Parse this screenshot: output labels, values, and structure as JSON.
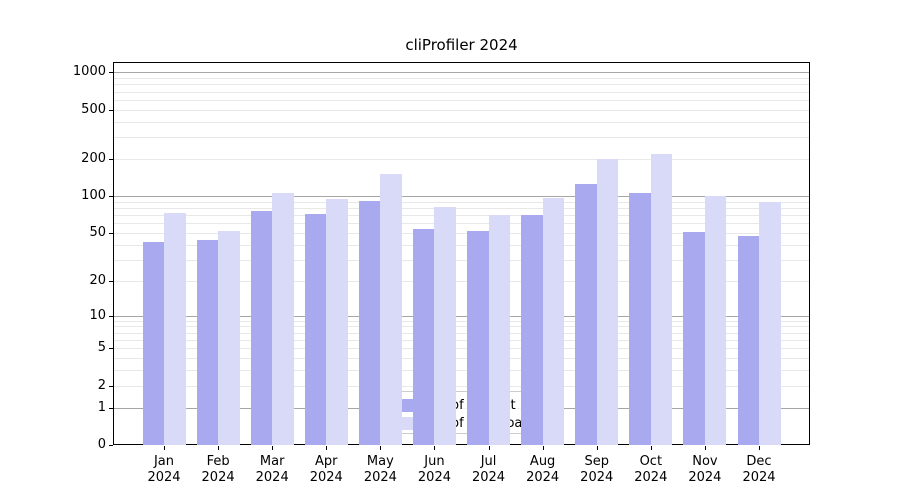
{
  "title": "cliProfiler 2024",
  "chart_data": {
    "type": "bar",
    "title": "cliProfiler 2024",
    "categories": [
      "Jan",
      "Feb",
      "Mar",
      "Apr",
      "May",
      "Jun",
      "Jul",
      "Aug",
      "Sep",
      "Oct",
      "Nov",
      "Dec"
    ],
    "x_tick_year": "2024",
    "series": [
      {
        "name": "Nb of distinct IPs",
        "color": "#a9a9f0",
        "values": [
          42,
          44,
          75,
          72,
          92,
          54,
          52,
          70,
          125,
          105,
          51,
          47
        ]
      },
      {
        "name": "Nb of downloads",
        "color": "#d9d9f8",
        "values": [
          73,
          52,
          105,
          95,
          150,
          82,
          70,
          97,
          200,
          220,
          100,
          90
        ]
      }
    ],
    "yscale": "log1p",
    "ylim": [
      0,
      1212
    ],
    "ytick_labels": [
      "0",
      "1",
      "2",
      "5",
      "10",
      "20",
      "50",
      "100",
      "200",
      "500",
      "1000"
    ],
    "yticks": [
      0,
      1,
      2,
      5,
      10,
      20,
      50,
      100,
      200,
      500,
      1000
    ],
    "major_gridlines": [
      1,
      10,
      100,
      1000
    ],
    "minor_gridlines": [
      2,
      3,
      4,
      5,
      6,
      7,
      8,
      9,
      20,
      30,
      40,
      50,
      60,
      70,
      80,
      90,
      200,
      300,
      400,
      500,
      600,
      700,
      800,
      900
    ],
    "grid": true,
    "legend_position": "lower center"
  },
  "colors": {
    "bar_distinct_ips": "#a9a9f0",
    "bar_downloads": "#d9d9f8",
    "major_grid": "rgba(0,0,0,0.35)",
    "minor_grid": "rgba(0,0,0,0.09)",
    "axis": "#000000",
    "background": "#ffffff"
  }
}
